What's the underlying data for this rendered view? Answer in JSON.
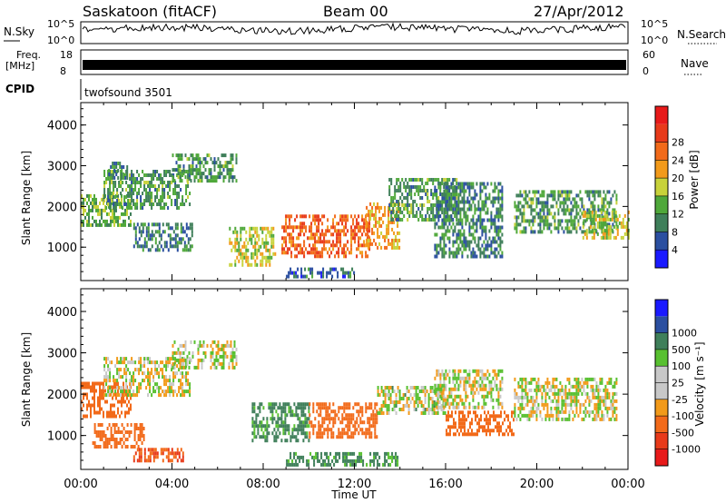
{
  "header": {
    "radar": "Saskatoon (fitACF)",
    "beam": "Beam 00",
    "date": "27/Apr/2012"
  },
  "status_panels": {
    "nsky_label": "N.Sky",
    "nsky_top": "10^5",
    "nsky_bottom": "10^0",
    "nsearch_label": "N.Search",
    "nsearch_top": "10^5",
    "nsearch_bottom": "10^0",
    "freq_label_1": "Freq.",
    "freq_label_2": "[MHz]",
    "freq_top": "18",
    "freq_bottom": "8",
    "nave_label": "Nave",
    "nave_top": "60",
    "nave_bottom": "0",
    "cpid_label": "CPID",
    "cpid_value": "twofsound 3501"
  },
  "colors": {
    "power_scale": [
      "#1a1aff",
      "#2b4fa0",
      "#3f7f5a",
      "#4fa83a",
      "#c8d23a",
      "#f29a1a",
      "#f26a1a",
      "#e83a1a",
      "#e81a1a"
    ],
    "velocity_scale": [
      "#e81a1a",
      "#e83a1a",
      "#f26a1a",
      "#f29a1a",
      "#c8c8c8",
      "#c8c8c8",
      "#58c030",
      "#3f7f5a",
      "#2b4fa0",
      "#1a1aff"
    ]
  },
  "chart_data": [
    {
      "type": "heatmap",
      "name": "power",
      "ylabel": "Slant Range [km]",
      "xlabel": "",
      "x_ticks": [
        "00:00",
        "04:00",
        "08:00",
        "12:00",
        "16:00",
        "20:00",
        "00:00"
      ],
      "y_ticks": [
        "1000",
        "2000",
        "3000",
        "4000"
      ],
      "ylim": [
        180,
        4550
      ],
      "xlim": [
        0,
        24
      ],
      "colorbar_label": "Power [dB]",
      "colorbar_ticks": [
        "4",
        "8",
        "12",
        "16",
        "20",
        "24",
        "28"
      ],
      "blobs": [
        {
          "x": [
            0.0,
            2.2
          ],
          "y": [
            1500,
            2300
          ],
          "power": 14
        },
        {
          "x": [
            1.0,
            4.8
          ],
          "y": [
            2000,
            2900
          ],
          "power": 12
        },
        {
          "x": [
            1.2,
            2.0
          ],
          "y": [
            2700,
            3100
          ],
          "power": 10
        },
        {
          "x": [
            2.3,
            4.9
          ],
          "y": [
            900,
            1600
          ],
          "power": 10
        },
        {
          "x": [
            4.0,
            6.8
          ],
          "y": [
            2600,
            3300
          ],
          "power": 12
        },
        {
          "x": [
            6.5,
            8.5
          ],
          "y": [
            600,
            1500
          ],
          "power": 18
        },
        {
          "x": [
            8.8,
            12.7
          ],
          "y": [
            800,
            1800
          ],
          "power": 27
        },
        {
          "x": [
            12.5,
            14.0
          ],
          "y": [
            1000,
            2100
          ],
          "power": 22
        },
        {
          "x": [
            13.5,
            16.5
          ],
          "y": [
            1700,
            2700
          ],
          "power": 12
        },
        {
          "x": [
            15.5,
            18.5
          ],
          "y": [
            800,
            2600
          ],
          "power": 10
        },
        {
          "x": [
            19.0,
            23.5
          ],
          "y": [
            1400,
            2400
          ],
          "power": 12
        },
        {
          "x": [
            22.0,
            24.0
          ],
          "y": [
            1200,
            1900
          ],
          "power": 18
        },
        {
          "x": [
            9.0,
            12.0
          ],
          "y": [
            300,
            500
          ],
          "power": 8
        }
      ]
    },
    {
      "type": "heatmap",
      "name": "velocity",
      "xlabel": "Time UT",
      "ylabel": "Slant Range [km]",
      "x_ticks": [
        "00:00",
        "04:00",
        "08:00",
        "12:00",
        "16:00",
        "20:00",
        "00:00"
      ],
      "y_ticks": [
        "1000",
        "2000",
        "3000",
        "4000"
      ],
      "ylim": [
        180,
        4550
      ],
      "xlim": [
        0,
        24
      ],
      "colorbar_label": "Velocity [m s⁻¹]",
      "colorbar_ticks": [
        "1000",
        "500",
        "100",
        "25",
        "-25",
        "-100",
        "-500",
        "-1000"
      ],
      "blobs": [
        {
          "x": [
            0.0,
            2.2
          ],
          "y": [
            1500,
            2300
          ],
          "velocity": -300
        },
        {
          "x": [
            1.0,
            4.8
          ],
          "y": [
            2000,
            2900
          ],
          "velocity": 0
        },
        {
          "x": [
            0.5,
            2.8
          ],
          "y": [
            700,
            1300
          ],
          "velocity": -400
        },
        {
          "x": [
            2.3,
            4.5
          ],
          "y": [
            350,
            700
          ],
          "velocity": -500
        },
        {
          "x": [
            4.0,
            6.8
          ],
          "y": [
            2600,
            3300
          ],
          "velocity": 0
        },
        {
          "x": [
            7.5,
            10.0
          ],
          "y": [
            900,
            1800
          ],
          "velocity": 150
        },
        {
          "x": [
            10.0,
            13.0
          ],
          "y": [
            1000,
            1800
          ],
          "velocity": -200
        },
        {
          "x": [
            13.0,
            16.0
          ],
          "y": [
            1500,
            2200
          ],
          "velocity": 10
        },
        {
          "x": [
            16.0,
            19.0
          ],
          "y": [
            1000,
            1600
          ],
          "velocity": -300
        },
        {
          "x": [
            15.5,
            18.5
          ],
          "y": [
            1700,
            2600
          ],
          "velocity": 0
        },
        {
          "x": [
            19.0,
            23.5
          ],
          "y": [
            1400,
            2400
          ],
          "velocity": 0
        },
        {
          "x": [
            9.0,
            14.0
          ],
          "y": [
            300,
            600
          ],
          "velocity": 150
        }
      ]
    }
  ]
}
